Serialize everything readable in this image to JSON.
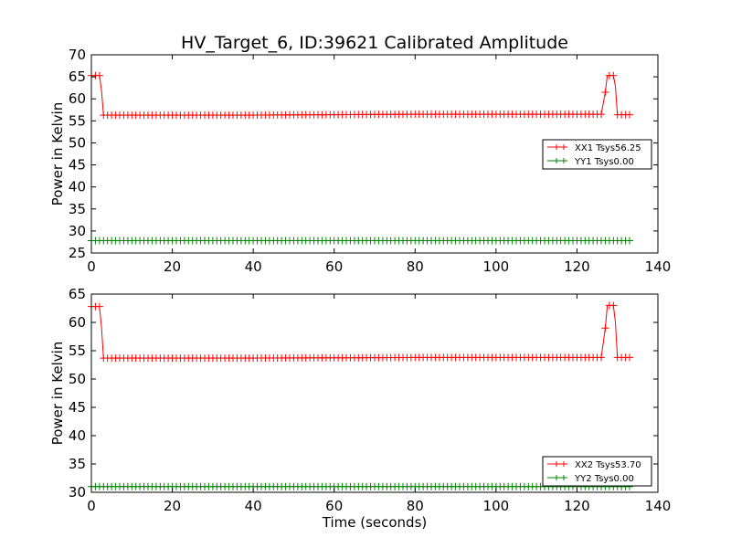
{
  "chart_data": [
    {
      "type": "line",
      "title": "HV_Target_6, ID:39621 Calibrated Amplitude",
      "xlabel": "",
      "ylabel": "Power in Kelvin",
      "xlim": [
        0,
        140
      ],
      "ylim": [
        25,
        70
      ],
      "xticks": [
        "0",
        "20",
        "40",
        "60",
        "80",
        "100",
        "120",
        "140"
      ],
      "yticks": [
        "25",
        "30",
        "35",
        "40",
        "45",
        "50",
        "55",
        "60",
        "65",
        "70"
      ],
      "legend_position": "center-right",
      "series": [
        {
          "name": "XX1 Tsys56.25",
          "color": "#ff0000",
          "marker": "plus",
          "points": [
            [
              0,
              65.3
            ],
            [
              1,
              65.3
            ],
            [
              2,
              65.3
            ],
            [
              2.5,
              62.0
            ],
            [
              3,
              56.3
            ],
            [
              40,
              56.3
            ],
            [
              80,
              56.5
            ],
            [
              126,
              56.5
            ],
            [
              127,
              61.5
            ],
            [
              127.5,
              65.3
            ],
            [
              129,
              65.3
            ],
            [
              129.5,
              62.8
            ],
            [
              130,
              56.4
            ],
            [
              133,
              56.4
            ]
          ]
        },
        {
          "name": "YY1 Tsys0.00",
          "color": "#008000",
          "marker": "plus",
          "points": [
            [
              0,
              27.8
            ],
            [
              133,
              27.8
            ]
          ]
        }
      ]
    },
    {
      "type": "line",
      "title": "",
      "xlabel": "Time (seconds)",
      "ylabel": "Power in Kelvin",
      "xlim": [
        0,
        140
      ],
      "ylim": [
        30,
        65
      ],
      "xticks": [
        "0",
        "20",
        "40",
        "60",
        "80",
        "100",
        "120",
        "140"
      ],
      "yticks": [
        "30",
        "35",
        "40",
        "45",
        "50",
        "55",
        "60",
        "65"
      ],
      "legend_position": "lower-right",
      "series": [
        {
          "name": "XX2 Tsys53.70",
          "color": "#ff0000",
          "marker": "plus",
          "points": [
            [
              0,
              62.8
            ],
            [
              1,
              62.8
            ],
            [
              2,
              62.8
            ],
            [
              2.5,
              59.2
            ],
            [
              3,
              53.7
            ],
            [
              40,
              53.7
            ],
            [
              80,
              53.8
            ],
            [
              126,
              53.8
            ],
            [
              127,
              59.0
            ],
            [
              127.5,
              63.0
            ],
            [
              129,
              63.0
            ],
            [
              129.5,
              60.0
            ],
            [
              130,
              53.8
            ],
            [
              133,
              53.8
            ]
          ]
        },
        {
          "name": "YY2 Tsys0.00",
          "color": "#008000",
          "marker": "plus",
          "points": [
            [
              0,
              31.0
            ],
            [
              133,
              31.0
            ]
          ]
        }
      ]
    }
  ]
}
